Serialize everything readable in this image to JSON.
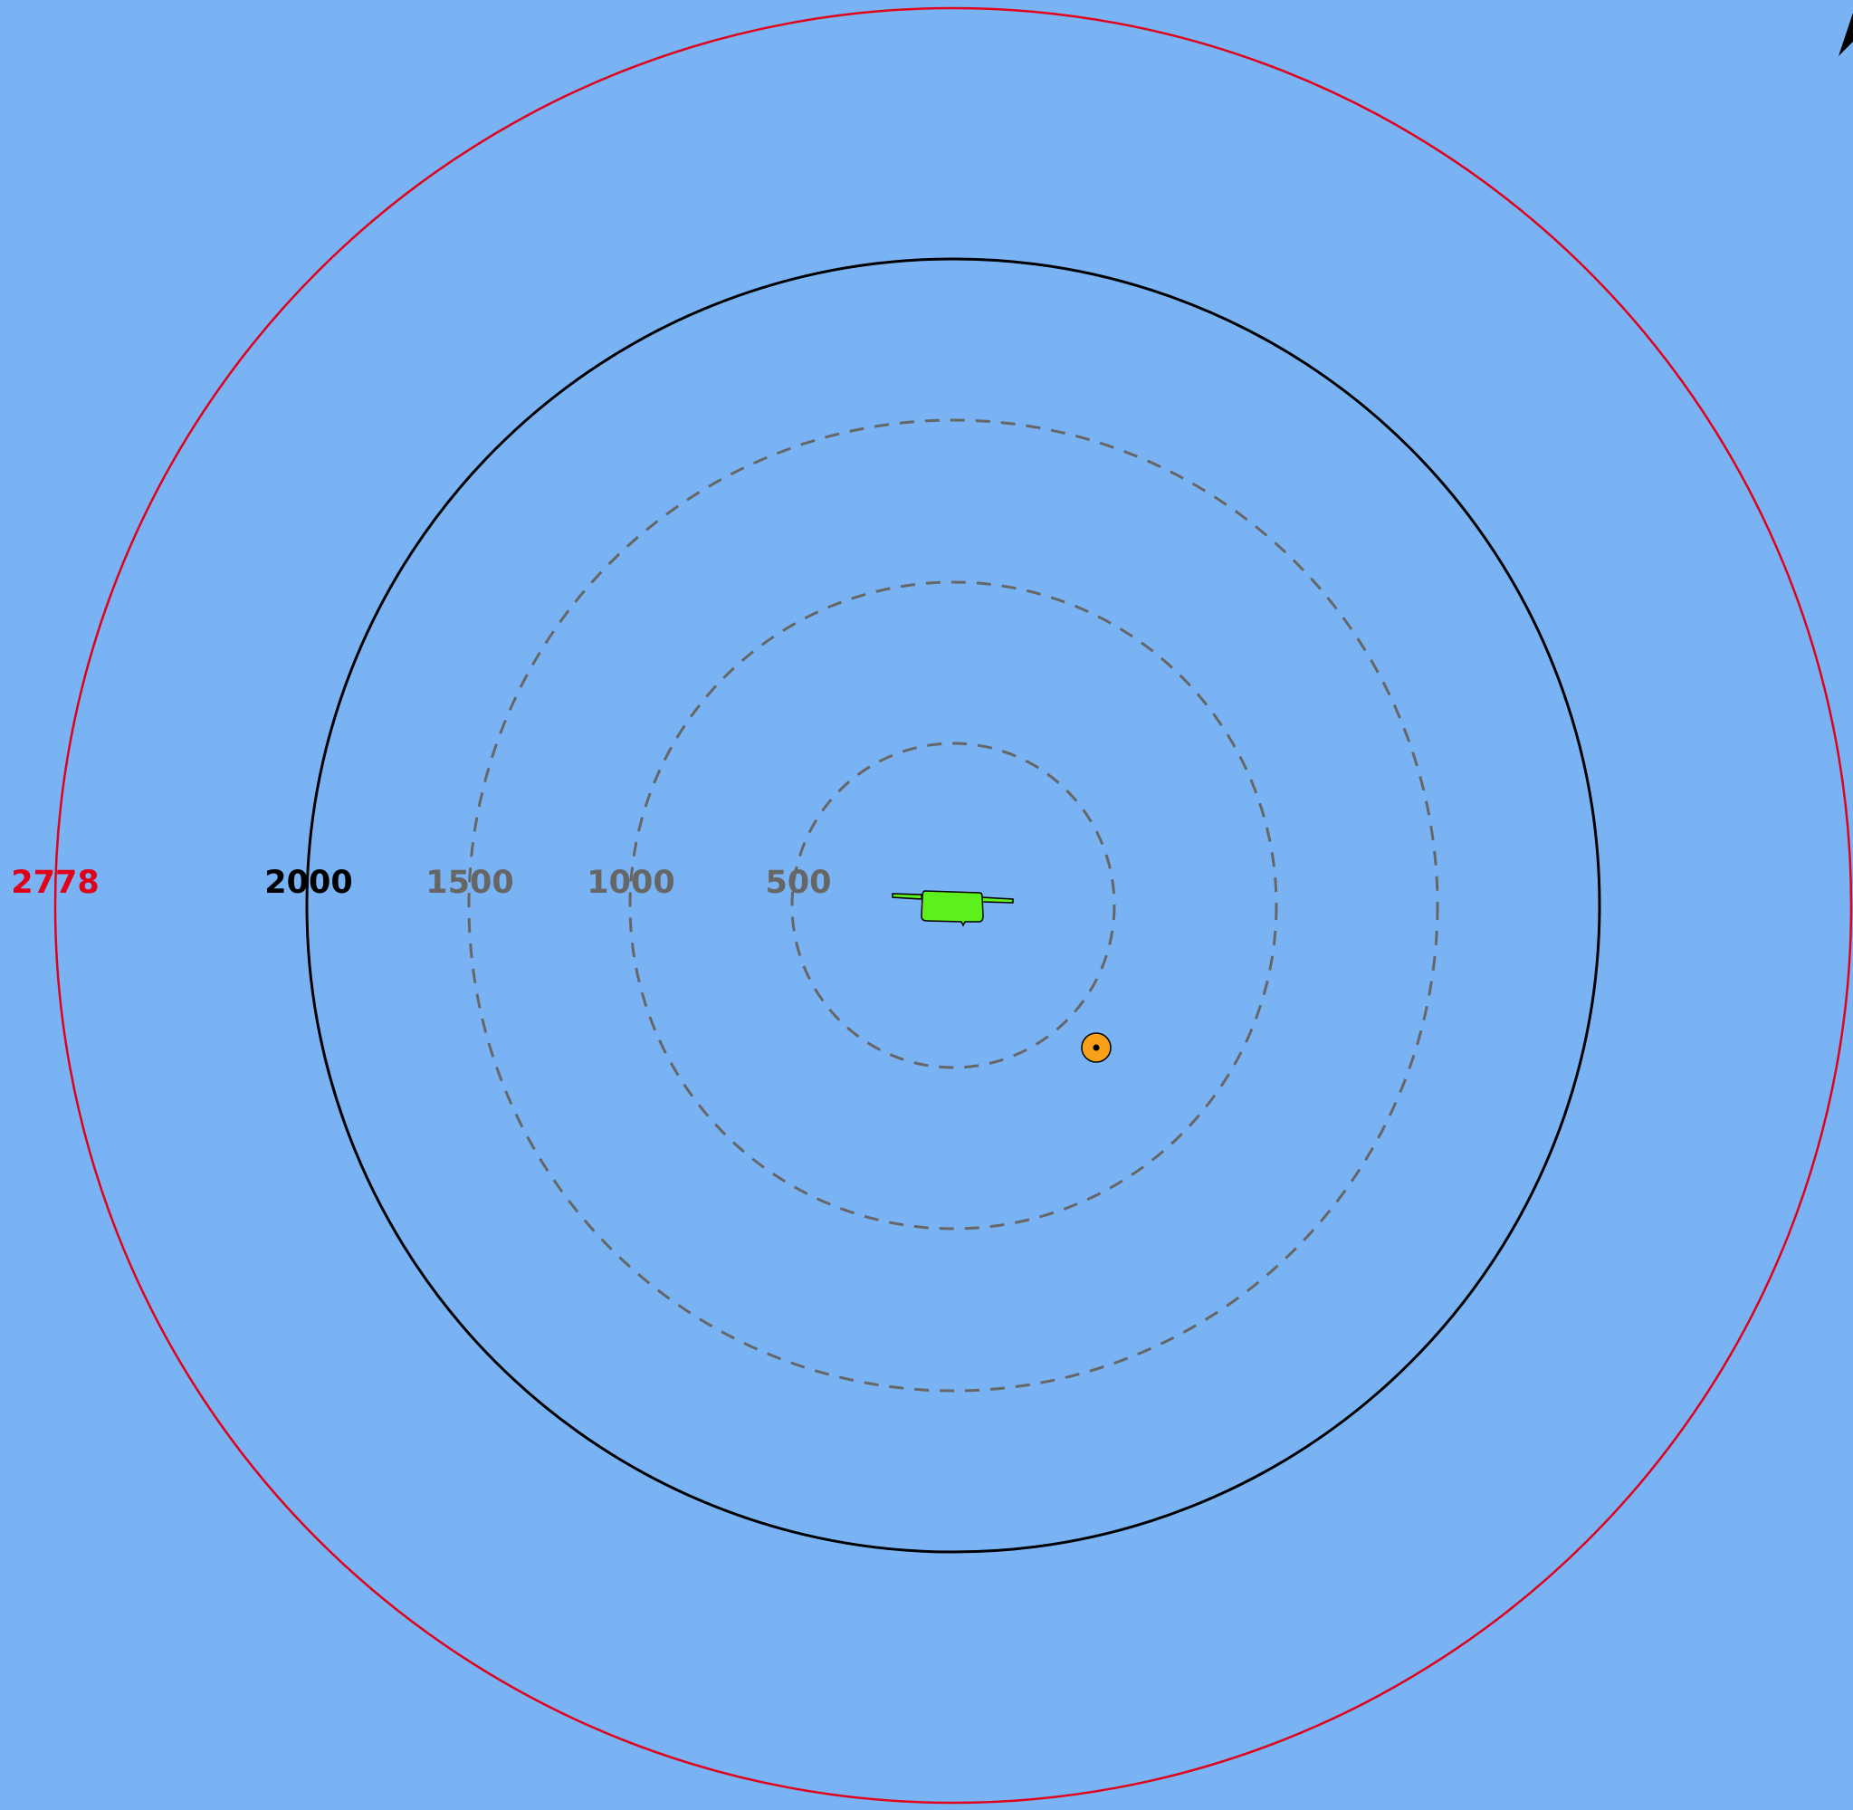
{
  "colors": {
    "background": "#7ab3f4",
    "outer_ring": "#e0001a",
    "solid_ring": "#000000",
    "dashed_ring": "#666666",
    "vessel_fill": "#5ef01c",
    "buoy_fill": "#f8a01a"
  },
  "range_rings": [
    {
      "label": "500",
      "style": "dashed",
      "color": "#666666"
    },
    {
      "label": "1000",
      "style": "dashed",
      "color": "#666666"
    },
    {
      "label": "1500",
      "style": "dashed",
      "color": "#666666"
    },
    {
      "label": "2000",
      "style": "solid",
      "color": "#000000"
    },
    {
      "label": "2778",
      "style": "solid",
      "color": "#e0001a"
    }
  ],
  "map_items": [
    {
      "name": "vessel-icon",
      "kind": "vessel"
    },
    {
      "name": "buoy-marker-icon",
      "kind": "buoy"
    },
    {
      "name": "north-arrow-icon",
      "kind": "north-arrow"
    }
  ]
}
